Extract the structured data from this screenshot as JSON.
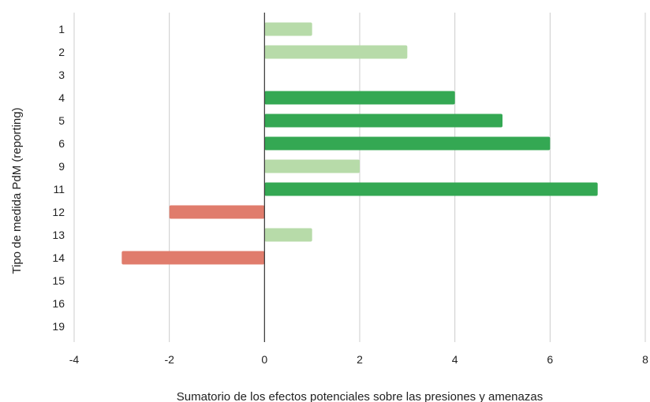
{
  "chart_data": {
    "type": "bar",
    "orientation": "horizontal",
    "title": "",
    "xlabel": "Sumatorio de los efectos potenciales sobre las presiones y amenazas",
    "ylabel": "Tipo de medida PdM (reporting)",
    "categories": [
      "1",
      "2",
      "3",
      "4",
      "5",
      "6",
      "9",
      "11",
      "12",
      "13",
      "14",
      "15",
      "16",
      "19"
    ],
    "values": [
      1,
      3,
      0,
      4,
      5,
      6,
      2,
      7,
      -2,
      1,
      -3,
      0,
      0,
      0
    ],
    "bar_colors": [
      "#b7dba9",
      "#b7dba9",
      null,
      "#34a853",
      "#34a853",
      "#34a853",
      "#b7dba9",
      "#34a853",
      "#e07c6c",
      "#b7dba9",
      "#e07c6c",
      null,
      null,
      null
    ],
    "xlim": [
      -4,
      8
    ],
    "xticks": [
      -4,
      -2,
      0,
      2,
      4,
      6,
      8
    ],
    "grid": true,
    "legend": "none"
  },
  "colors": {
    "grid": "#cccccc",
    "zero_axis": "#333333",
    "text": "#222222"
  }
}
